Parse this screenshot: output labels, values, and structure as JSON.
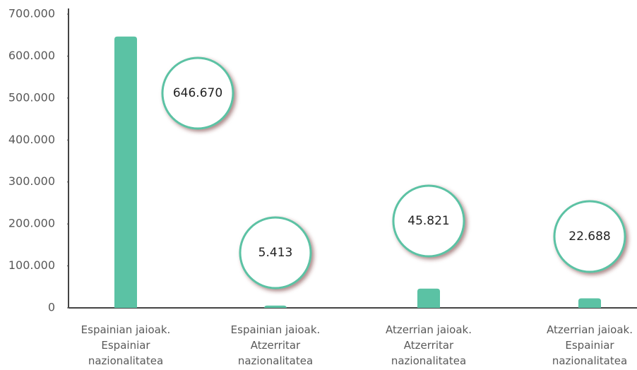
{
  "chart_data": {
    "type": "bar",
    "categories": [
      "Espainian jaioak. Espainiar nazionalitatea",
      "Espainian jaioak. Atzerritar nazionalitatea",
      "Atzerrian jaioak. Atzerritar nazionalitatea",
      "Atzerrian jaioak. Espainiar nazionalitatea"
    ],
    "values": [
      646670,
      5413,
      45821,
      22688
    ],
    "value_labels": [
      "646.670",
      "5.413",
      "45.821",
      "22.688"
    ],
    "color": "#5bc2a4",
    "ylim": [
      0,
      700000
    ],
    "yticks": [
      0,
      {
        "value": 100000,
        "label": "100.000"
      },
      {
        "value": 200000,
        "label": "200.000"
      },
      {
        "value": 300000,
        "label": "300.000"
      },
      {
        "value": 400000,
        "label": "400.000"
      },
      {
        "value": 500000,
        "label": "500.000"
      },
      {
        "value": 600000,
        "label": "600.000"
      },
      {
        "value": 700000,
        "label": "700.000"
      }
    ],
    "grid": false
  }
}
